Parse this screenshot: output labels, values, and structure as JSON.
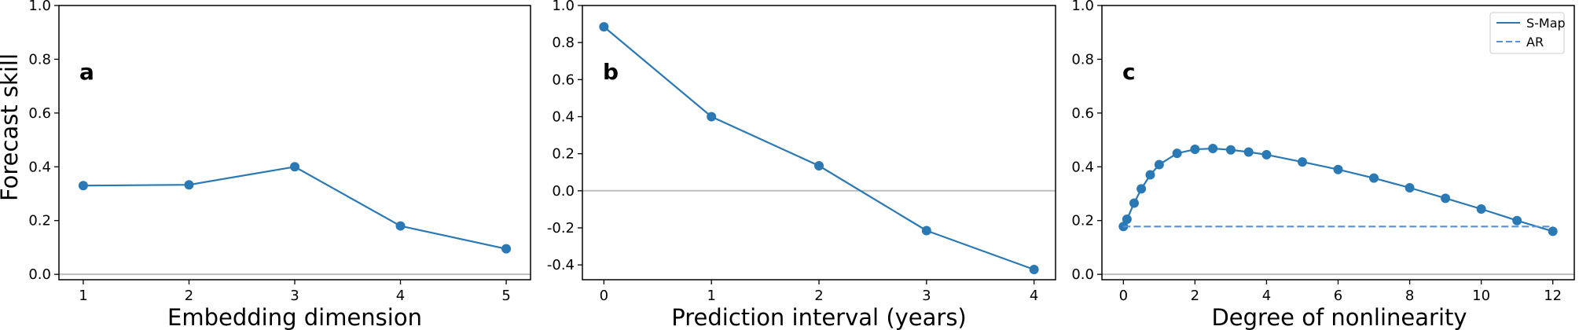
{
  "colors": {
    "series": "#2a78b4",
    "ar": "#5b8fd6",
    "zero_line": "#bdbdbd",
    "axis": "#000000"
  },
  "shared_ylabel": "Forecast skill",
  "chart_data": [
    {
      "type": "line",
      "panel_label": "a",
      "xlabel": "Embedding dimension",
      "ylabel": "Forecast skill",
      "xlim": [
        0.77,
        5.23
      ],
      "ylim": [
        -0.02,
        1.0
      ],
      "xticks": [
        1,
        2,
        3,
        4,
        5
      ],
      "yticks": [
        0.0,
        0.2,
        0.4,
        0.6,
        0.8,
        1.0
      ],
      "ytick_labels": [
        "0.0",
        "0.2",
        "0.4",
        "0.6",
        "0.8",
        "1.0"
      ],
      "hlines": [
        {
          "y": 0.0,
          "role": "zero"
        }
      ],
      "series": [
        {
          "x": [
            1,
            2,
            3,
            4,
            5
          ],
          "y": [
            0.33,
            0.333,
            0.4,
            0.18,
            0.095
          ],
          "style": "solid",
          "markers": true
        }
      ]
    },
    {
      "type": "line",
      "panel_label": "b",
      "xlabel": "Prediction interval (years)",
      "ylabel": "",
      "xlim": [
        -0.2,
        4.2
      ],
      "ylim": [
        -0.48,
        1.0
      ],
      "xticks": [
        0,
        1,
        2,
        3,
        4
      ],
      "yticks": [
        -0.4,
        -0.2,
        0.0,
        0.2,
        0.4,
        0.6,
        0.8,
        1.0
      ],
      "ytick_labels": [
        "-0.4",
        "-0.2",
        "0.0",
        "0.2",
        "0.4",
        "0.6",
        "0.8",
        "1.0"
      ],
      "hlines": [
        {
          "y": 0.0,
          "role": "zero"
        }
      ],
      "series": [
        {
          "x": [
            0,
            1,
            2,
            3,
            4
          ],
          "y": [
            0.885,
            0.4,
            0.135,
            -0.215,
            -0.425
          ],
          "style": "solid",
          "markers": true
        }
      ]
    },
    {
      "type": "line",
      "panel_label": "c",
      "xlabel": "Degree of nonlinearity",
      "ylabel": "",
      "xlim": [
        -0.6,
        12.6
      ],
      "ylim": [
        -0.02,
        1.0
      ],
      "xticks": [
        0,
        2,
        4,
        6,
        8,
        10,
        12
      ],
      "yticks": [
        0.0,
        0.2,
        0.4,
        0.6,
        0.8,
        1.0
      ],
      "ytick_labels": [
        "0.0",
        "0.2",
        "0.4",
        "0.6",
        "0.8",
        "1.0"
      ],
      "hlines": [
        {
          "y": 0.0,
          "role": "zero"
        }
      ],
      "legend": {
        "position": "top-right",
        "entries": [
          "S-Map",
          "AR"
        ]
      },
      "series": [
        {
          "name": "S-Map",
          "style": "solid",
          "markers": true,
          "x": [
            0,
            0.1,
            0.3,
            0.5,
            0.75,
            1,
            1.5,
            2,
            2.5,
            3,
            3.5,
            4,
            5,
            6,
            7,
            8,
            9,
            10,
            11,
            12
          ],
          "y": [
            0.178,
            0.205,
            0.265,
            0.318,
            0.37,
            0.408,
            0.45,
            0.465,
            0.468,
            0.463,
            0.455,
            0.445,
            0.418,
            0.39,
            0.358,
            0.322,
            0.283,
            0.243,
            0.2,
            0.16
          ]
        },
        {
          "name": "AR",
          "style": "dashed",
          "markers": false,
          "x": [
            0,
            12
          ],
          "y": [
            0.178,
            0.178
          ]
        }
      ]
    }
  ]
}
